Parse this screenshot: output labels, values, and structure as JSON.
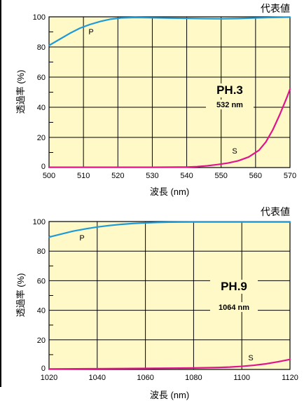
{
  "chart_data": [
    {
      "type": "line",
      "title": "",
      "corner_note": "代表値",
      "xlabel": "波長 (nm)",
      "ylabel": "透過率 (%)",
      "xlim": [
        500,
        570
      ],
      "ylim": [
        0,
        100
      ],
      "x_ticks": [
        500,
        510,
        520,
        530,
        540,
        550,
        560,
        570
      ],
      "y_ticks": [
        0,
        20,
        40,
        60,
        80,
        100
      ],
      "grid": true,
      "plot_background": "#fff9c8",
      "annotation": {
        "main": "PH.3",
        "sub": "532 nm"
      },
      "series": [
        {
          "name": "P",
          "color": "#1e9ad6",
          "x": [
            500,
            503,
            506,
            509,
            512,
            515,
            518,
            521,
            525,
            530,
            535,
            540,
            545,
            550,
            555,
            560,
            565,
            570
          ],
          "y": [
            81,
            85,
            89,
            92.5,
            95,
            97,
            98.5,
            99.3,
            99.6,
            99.4,
            99.2,
            99.0,
            98.8,
            98.7,
            98.9,
            99.3,
            99.6,
            99.8
          ]
        },
        {
          "name": "S",
          "color": "#e0148c",
          "x": [
            500,
            510,
            520,
            530,
            540,
            543,
            546,
            549,
            552,
            555,
            558,
            561,
            563,
            565,
            567,
            569,
            570
          ],
          "y": [
            0.2,
            0.2,
            0.2,
            0.2,
            0.3,
            0.6,
            1.2,
            2.0,
            3.0,
            4.5,
            7.0,
            11.5,
            17,
            25,
            35,
            46,
            52
          ]
        }
      ]
    },
    {
      "type": "line",
      "title": "",
      "corner_note": "代表値",
      "xlabel": "波長 (nm)",
      "ylabel": "透過率 (%)",
      "xlim": [
        1020,
        1120
      ],
      "ylim": [
        0,
        100
      ],
      "x_ticks": [
        1020,
        1040,
        1060,
        1080,
        1100,
        1120
      ],
      "y_ticks": [
        0,
        20,
        40,
        60,
        80,
        100
      ],
      "grid": true,
      "plot_background": "#fff9c8",
      "annotation": {
        "main": "PH.9",
        "sub": "1064 nm"
      },
      "series": [
        {
          "name": "P",
          "color": "#1e9ad6",
          "x": [
            1020,
            1025,
            1030,
            1035,
            1040,
            1045,
            1050,
            1055,
            1060,
            1065,
            1070,
            1080,
            1090,
            1100,
            1110,
            1120
          ],
          "y": [
            89.5,
            91.5,
            93.5,
            95,
            96.3,
            97.3,
            98.1,
            98.7,
            99.1,
            99.4,
            99.6,
            99.7,
            99.7,
            99.7,
            99.7,
            99.7
          ]
        },
        {
          "name": "S",
          "color": "#e0148c",
          "x": [
            1020,
            1040,
            1060,
            1080,
            1090,
            1095,
            1100,
            1105,
            1110,
            1115,
            1120
          ],
          "y": [
            0.3,
            0.5,
            0.7,
            1.0,
            1.3,
            1.6,
            2.1,
            2.8,
            3.8,
            5.2,
            6.8
          ]
        }
      ]
    }
  ]
}
